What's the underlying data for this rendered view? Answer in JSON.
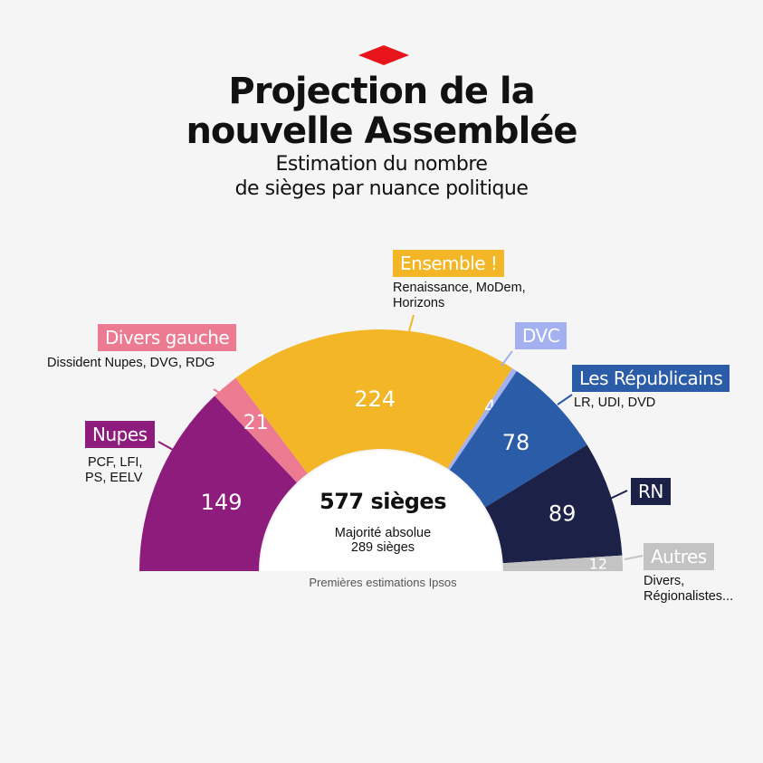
{
  "header": {
    "title_line1": "Projection de la",
    "title_line2": "nouvelle Assemblée",
    "subtitle_line1": "Estimation du nombre",
    "subtitle_line2": "de sièges par nuance politique"
  },
  "center": {
    "total": "577 sièges",
    "majority_line1": "Majorité absolue",
    "majority_line2": "289 sièges"
  },
  "source": "Premières estimations Ipsos",
  "chart_data": {
    "type": "pie",
    "title": "Projection de la nouvelle Assemblée",
    "subtitle": "Estimation du nombre de sièges par nuance politique",
    "total_seats": 577,
    "majority": 289,
    "series": [
      {
        "name": "Nupes",
        "value": 149,
        "color": "#8e1c7d",
        "label": "Nupes",
        "sub": [
          "PCF,  LFI,",
          "PS, EELV"
        ]
      },
      {
        "name": "Divers gauche",
        "value": 21,
        "color": "#ec7a90",
        "label": "Divers gauche",
        "sub": [
          "Dissident Nupes, DVG, RDG"
        ]
      },
      {
        "name": "Ensemble !",
        "value": 224,
        "color": "#f2b626",
        "label": "Ensemble !",
        "sub": [
          "Renaissance, MoDem,",
          "Horizons"
        ]
      },
      {
        "name": "DVC",
        "value": 4,
        "color": "#a4b1f0",
        "label": "DVC",
        "sub": []
      },
      {
        "name": "Les Républicains",
        "value": 78,
        "color": "#2b5ca8",
        "label": "Les Républicains",
        "sub": [
          "LR, UDI, DVD"
        ]
      },
      {
        "name": "RN",
        "value": 89,
        "color": "#1c2147",
        "label": "RN",
        "sub": []
      },
      {
        "name": "Autres",
        "value": 12,
        "color": "#c3c3c3",
        "label": "Autres",
        "sub": [
          "Divers,",
          "Régionalistes..."
        ]
      }
    ]
  }
}
